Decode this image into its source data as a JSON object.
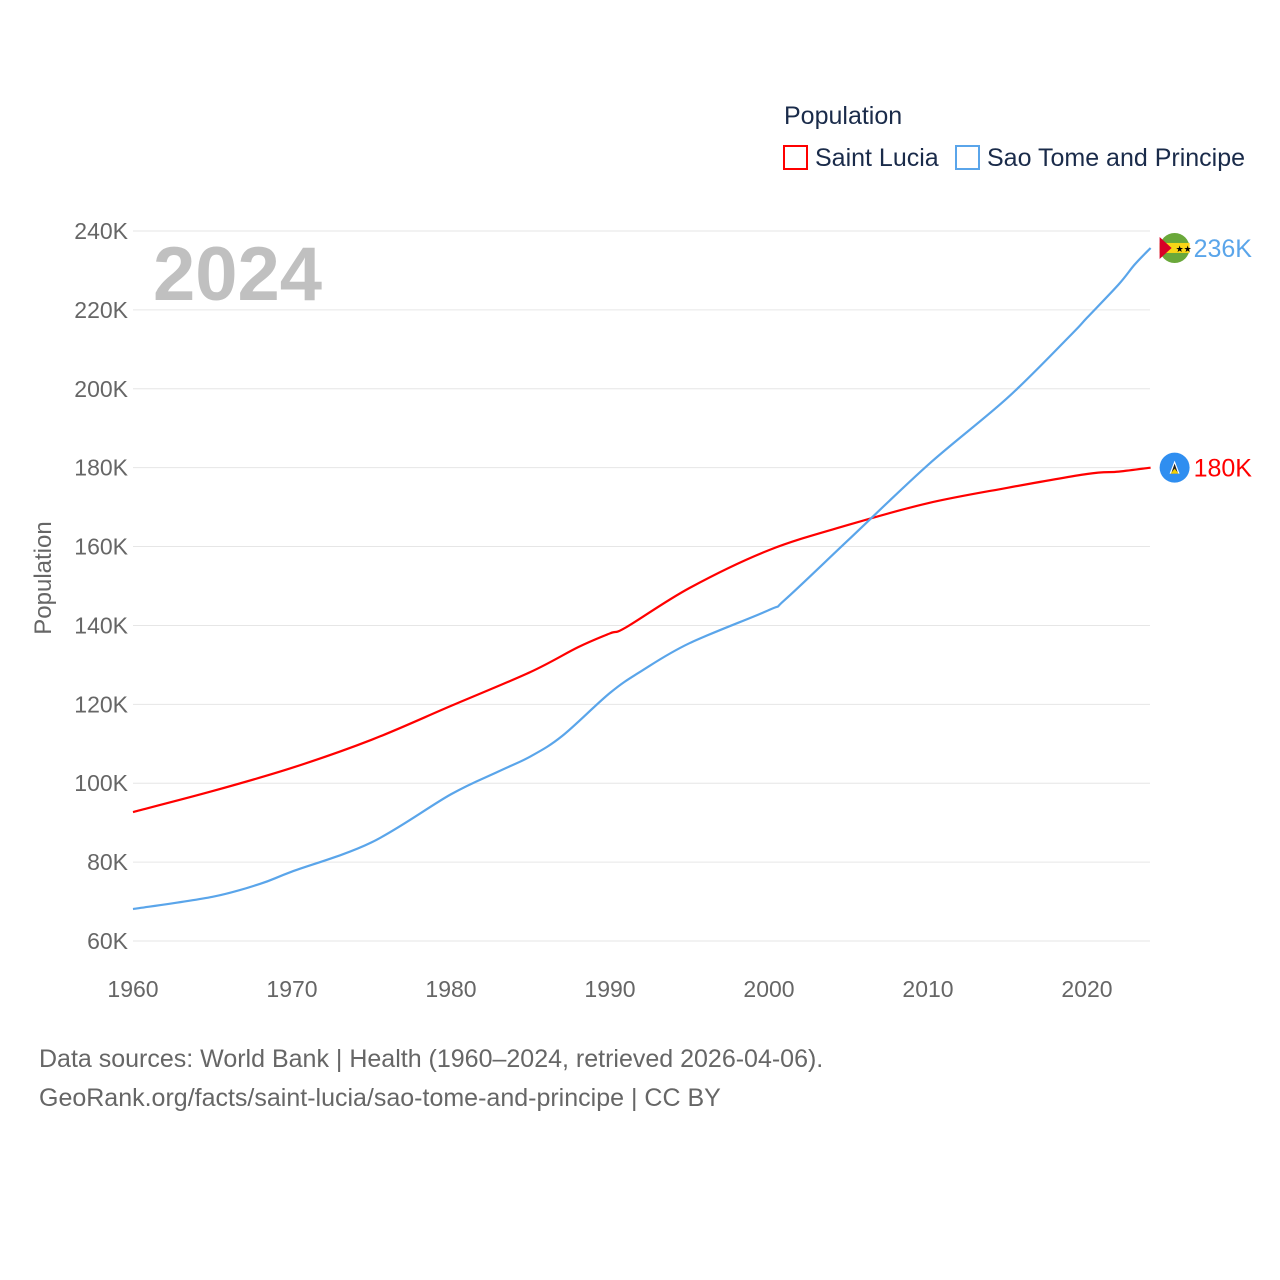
{
  "chart_data": {
    "type": "line",
    "title": "",
    "legend_title": "Population",
    "legend_position": "top-right",
    "ylabel": "Population",
    "xlabel": "",
    "year_label": "2024",
    "xlim": [
      1960,
      2024
    ],
    "ylim": [
      60000,
      240000
    ],
    "x_ticks": [
      1960,
      1970,
      1980,
      1990,
      2000,
      2010,
      2020
    ],
    "y_ticks": [
      {
        "value": 60000,
        "label": "60K"
      },
      {
        "value": 80000,
        "label": "80K"
      },
      {
        "value": 100000,
        "label": "100K"
      },
      {
        "value": 120000,
        "label": "120K"
      },
      {
        "value": 140000,
        "label": "140K"
      },
      {
        "value": 160000,
        "label": "160K"
      },
      {
        "value": 180000,
        "label": "180K"
      },
      {
        "value": 200000,
        "label": "200K"
      },
      {
        "value": 220000,
        "label": "220K"
      },
      {
        "value": 240000,
        "label": "240K"
      }
    ],
    "grid": true,
    "series": [
      {
        "name": "Saint Lucia",
        "color": "#ff0000",
        "end_label": "180K",
        "flag": "saint-lucia-flag",
        "x": [
          1960,
          1965,
          1970,
          1975,
          1980,
          1985,
          1988,
          1990,
          1991,
          1995,
          2000,
          2005,
          2010,
          2015,
          2020,
          2022,
          2024
        ],
        "values": [
          92700,
          98000,
          103900,
          111000,
          119600,
          128200,
          134500,
          138000,
          139500,
          149500,
          159100,
          165500,
          171000,
          174900,
          178400,
          179000,
          180000
        ]
      },
      {
        "name": "Sao Tome and Principe",
        "color": "#5aa5ea",
        "end_label": "236K",
        "flag": "sao-tome-flag",
        "x": [
          1960,
          1965,
          1968,
          1970,
          1975,
          1980,
          1983,
          1985,
          1987,
          1990,
          1992,
          1995,
          2000,
          2001,
          2005,
          2010,
          2015,
          2019,
          2020,
          2022,
          2023,
          2024
        ],
        "values": [
          68100,
          71200,
          74500,
          77600,
          85000,
          97200,
          103000,
          106800,
          112000,
          122900,
          128500,
          135500,
          143900,
          146500,
          161700,
          180700,
          197700,
          213700,
          218000,
          226500,
          231500,
          235700
        ]
      }
    ]
  },
  "footer": {
    "line1": "Data sources: World Bank | Health (1960–2024, retrieved 2026-04-06).",
    "line2": "GeoRank.org/facts/saint-lucia/sao-tome-and-principe | CC BY"
  }
}
